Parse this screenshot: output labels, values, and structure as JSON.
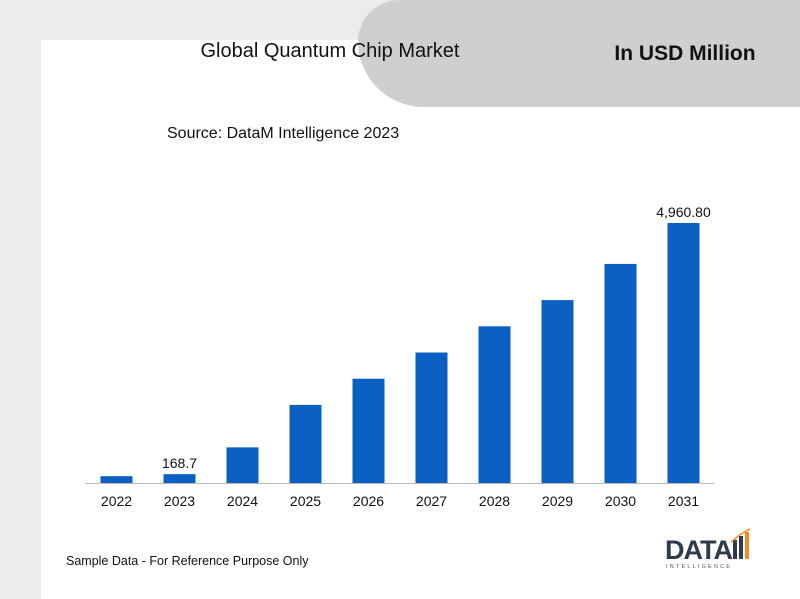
{
  "header": {
    "title": "Global Quantum Chip Market",
    "unit": "In USD Million",
    "source": "Source: DataM Intelligence 2023"
  },
  "footer": {
    "note": "Sample Data - For Reference Purpose Only"
  },
  "logo": {
    "main": "DATA",
    "sub": "INTELLIGENCE"
  },
  "colors": {
    "bar": "#0a60c2",
    "banner": "#cfcfcf",
    "background": "#ececec",
    "logo": "#2e3b4e",
    "logo_accent": "#f28c1e"
  },
  "chart_data": {
    "type": "bar",
    "title": "Global Quantum Chip Market",
    "xlabel": "",
    "ylabel": "",
    "categories": [
      "2022",
      "2023",
      "2024",
      "2025",
      "2026",
      "2027",
      "2028",
      "2029",
      "2030",
      "2031"
    ],
    "series": [
      {
        "values": [
          130,
          168.7,
          680,
          1490,
          1990,
          2490,
          2990,
          3490,
          4180,
          4960.8
        ]
      }
    ],
    "data_labels": {
      "2023": "168.7",
      "2031": "4,960.80"
    },
    "ylim": [
      0,
      4960.8
    ],
    "grid": false,
    "legend": "none"
  }
}
